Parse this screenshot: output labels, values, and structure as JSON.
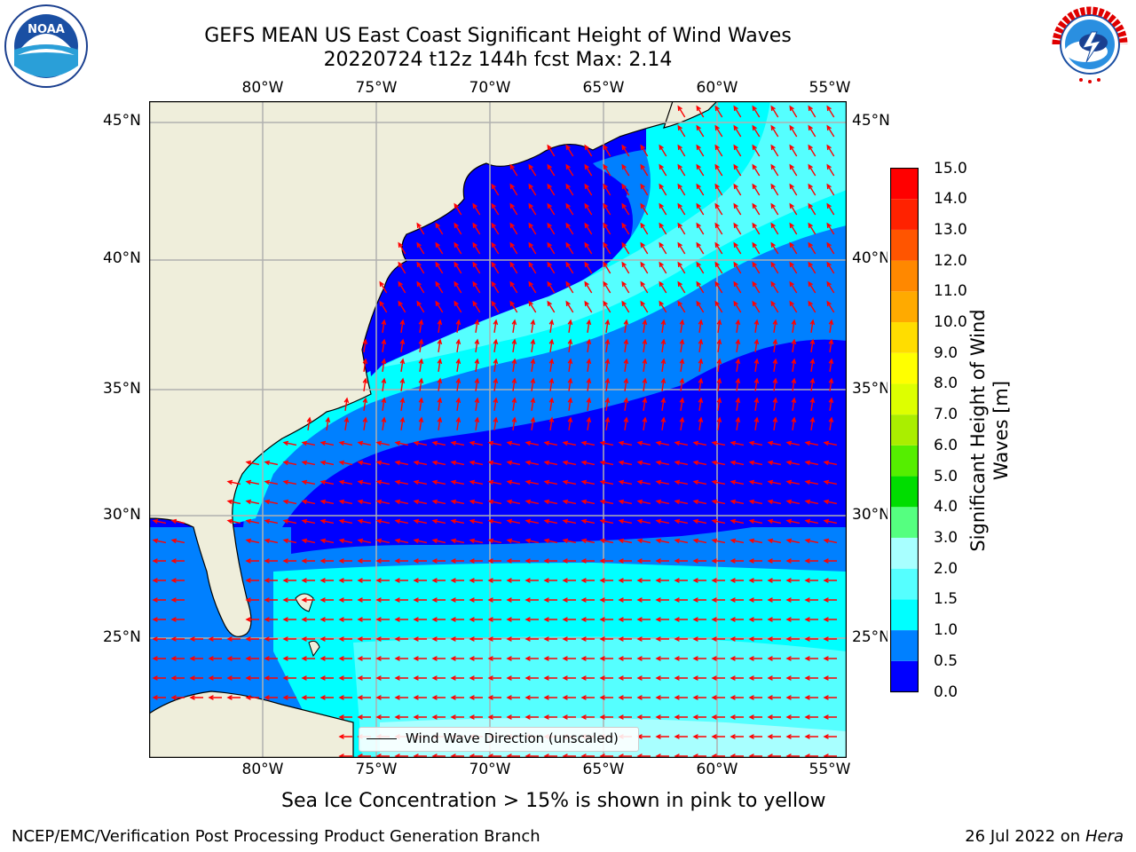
{
  "header": {
    "title_line1": "GEFS MEAN US East Coast Significant Height of Wind Waves",
    "title_line2": "20220724 t12z 144h fcst   Max: 2.14"
  },
  "logos": {
    "left": "NOAA",
    "right": "NATIONAL WEATHER SERVICE"
  },
  "map": {
    "lon_labels": [
      "80°W",
      "75°W",
      "70°W",
      "65°W",
      "60°W",
      "55°W"
    ],
    "lat_labels": [
      "45°N",
      "40°N",
      "35°N",
      "30°N",
      "25°N"
    ],
    "legend_text": "Wind Wave Direction (unscaled)",
    "colors": {
      "land": "#efeedb",
      "arrow": "#ff0000",
      "grid": "#b0b0b0"
    }
  },
  "colorbar": {
    "title": "Significant Height of Wind Waves [m]",
    "ticks": [
      "15.0",
      "14.0",
      "13.0",
      "12.0",
      "11.0",
      "10.0",
      "9.0",
      "8.0",
      "7.0",
      "6.0",
      "5.0",
      "4.0",
      "3.0",
      "2.0",
      "1.5",
      "1.0",
      "0.5",
      "0.0"
    ],
    "colors": [
      "#0000ff",
      "#0080ff",
      "#00ffff",
      "#55ffff",
      "#a8ffff",
      "#55ff80",
      "#00dd00",
      "#55ee00",
      "#aaee00",
      "#ddff00",
      "#ffff00",
      "#ffdd00",
      "#ffaa00",
      "#ff8800",
      "#ff5500",
      "#ff2200",
      "#ff0000"
    ]
  },
  "notes": {
    "sea_ice": "Sea Ice Concentration > 15% is shown in pink to yellow",
    "footer_left": "NCEP/EMC/Verification Post Processing Product Generation Branch",
    "footer_date": "26 Jul 2022 on ",
    "footer_machine": "Hera"
  }
}
